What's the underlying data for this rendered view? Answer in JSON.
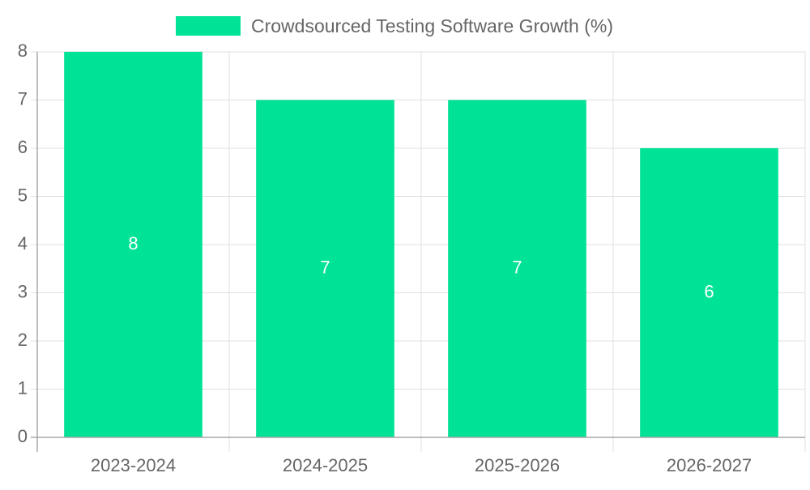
{
  "chart_data": {
    "type": "bar",
    "categories": [
      "2023-2024",
      "2024-2025",
      "2025-2026",
      "2026-2027"
    ],
    "series": [
      {
        "name": "Crowdsourced Testing Software Growth (%)",
        "values": [
          8,
          7,
          7,
          6
        ],
        "color": "#00e295"
      }
    ],
    "data_labels": [
      "8",
      "7",
      "7",
      "6"
    ],
    "y_ticks": [
      "0",
      "1",
      "2",
      "3",
      "4",
      "5",
      "6",
      "7",
      "8"
    ],
    "ylim": [
      0,
      8
    ],
    "grid": true,
    "legend_position": "top-center",
    "title": "",
    "xlabel": "",
    "ylabel": ""
  }
}
